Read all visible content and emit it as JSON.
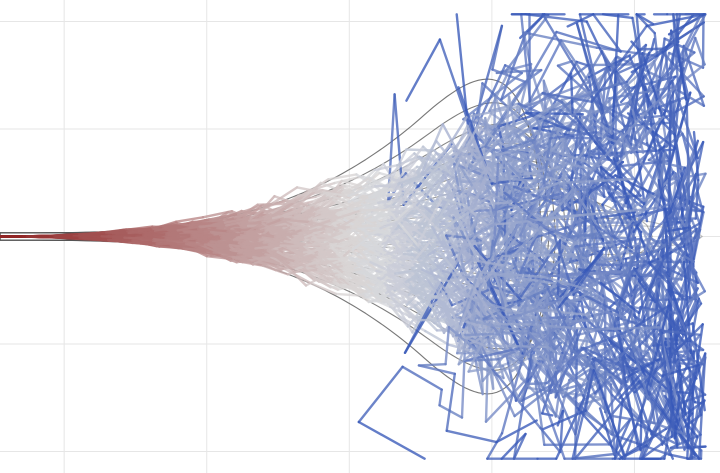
{
  "chart_data": {
    "type": "line",
    "title": "",
    "xlabel": "",
    "ylabel": "",
    "xlim": [
      -4.9,
      5.2
    ],
    "ylim": [
      -3.3,
      3.3
    ],
    "grid": true,
    "legend": "none",
    "gridlines_x": [
      -4,
      -2,
      0,
      2,
      4
    ],
    "gridlines_y": [
      -3,
      -1.5,
      0,
      1.5,
      3
    ],
    "funnel_contours": {
      "description_style": "nested tanh-shaped level curves opening toward positive x",
      "widths": [
        0.18,
        0.35,
        0.55,
        0.8,
        1.05,
        1.35,
        1.7,
        2.1,
        2.55,
        3.05,
        3.6
      ],
      "tip_x": -4.9,
      "reach_x": [
        4.95,
        4.6,
        4.25,
        3.95,
        3.7,
        3.45,
        3.25,
        3.05,
        2.9,
        2.8,
        2.7
      ],
      "color": "#555555"
    },
    "trajectories": {
      "count": 150,
      "start": [
        -4.9,
        0.0
      ],
      "steps": 28,
      "color_start": "#8b1a1a",
      "color_mid": "#dcdcdc",
      "color_end": "#2b4fb5"
    },
    "colors": {
      "contour": "#555555",
      "grid": "#e6e6e6",
      "background": "#ffffff"
    }
  }
}
